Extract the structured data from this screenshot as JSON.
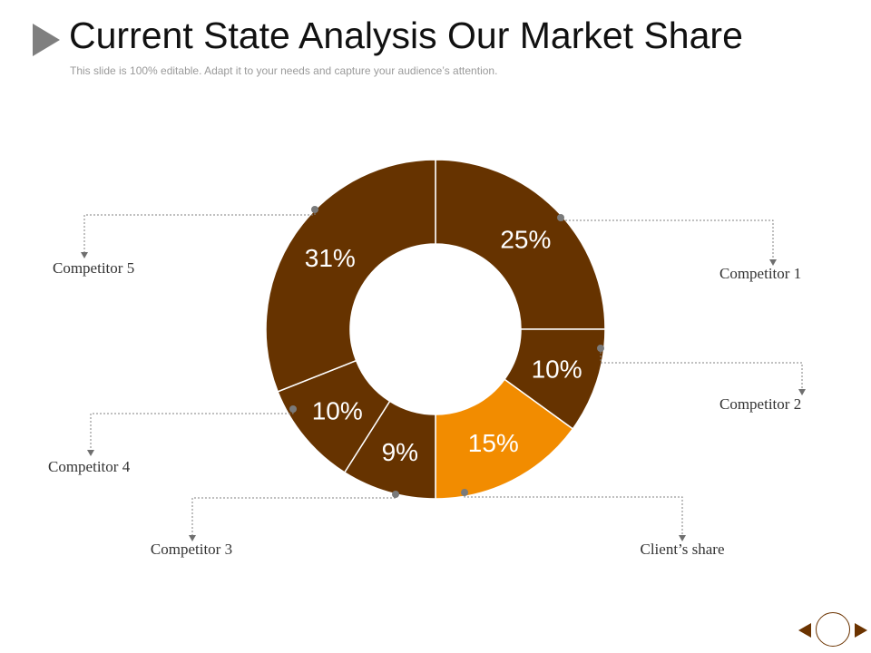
{
  "slide": {
    "title": "Current State Analysis Our Market Share",
    "subtitle": "This slide is 100% editable. Adapt it to your needs and capture your audience’s attention."
  },
  "colors": {
    "primary": "#663300",
    "accent": "#f28c00",
    "connector": "#808080",
    "nav": "#6b3300"
  },
  "chart_data": {
    "type": "pie",
    "subtype": "donut",
    "title": "",
    "slices": [
      {
        "label": "Competitor 1",
        "value": 25,
        "value_label": "25%",
        "color": "#663300"
      },
      {
        "label": "Competitor 2",
        "value": 10,
        "value_label": "10%",
        "color": "#663300"
      },
      {
        "label": "Client’s share",
        "value": 15,
        "value_label": "15%",
        "color": "#f28c00"
      },
      {
        "label": "Competitor 3",
        "value": 9,
        "value_label": "9%",
        "color": "#663300"
      },
      {
        "label": "Competitor 4",
        "value": 10,
        "value_label": "10%",
        "color": "#663300"
      },
      {
        "label": "Competitor 5",
        "value": 31,
        "value_label": "31%",
        "color": "#663300"
      }
    ]
  },
  "navigation": {
    "prev_icon": "triangle-left-icon",
    "home_icon": "circle-icon",
    "next_icon": "triangle-right-icon"
  }
}
